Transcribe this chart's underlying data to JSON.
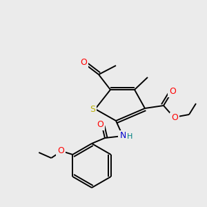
{
  "bg_color": "#ebebeb",
  "atom_colors": {
    "O": "#ff0000",
    "N": "#0000cd",
    "S": "#b8b000",
    "C": "#000000",
    "H": "#008080"
  },
  "bond_color": "#000000",
  "bond_width": 1.4
}
